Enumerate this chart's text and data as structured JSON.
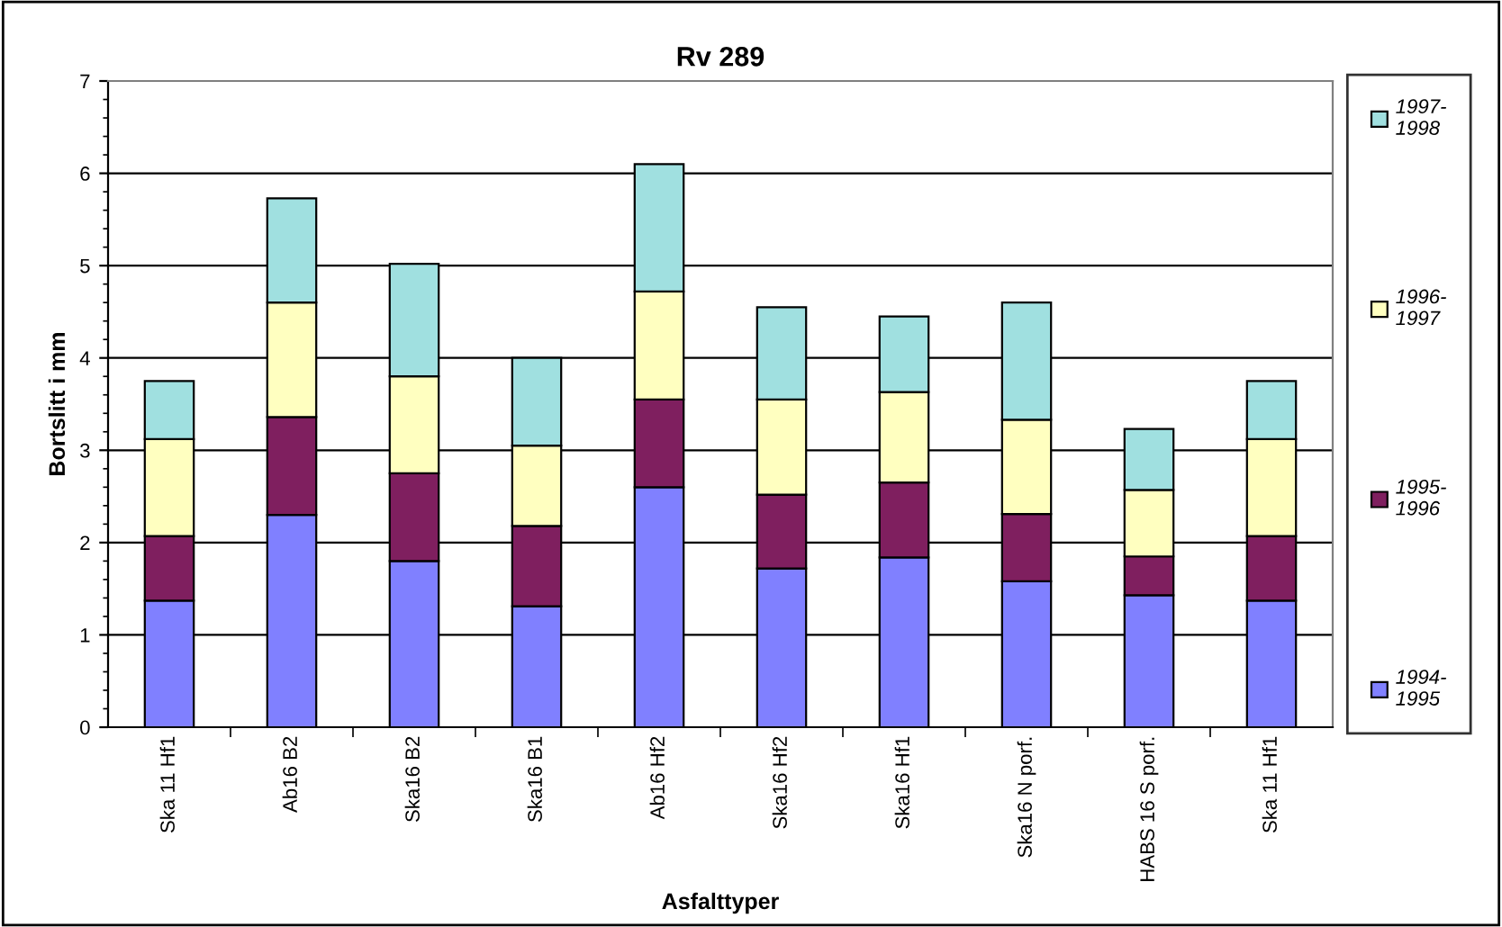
{
  "chart_data": {
    "type": "bar",
    "stacked": true,
    "title": "Rv 289",
    "xlabel": "Asfalttyper",
    "ylabel": "Bortslitt i mm",
    "categories": [
      "Ska 11 Hf1",
      "Ab16 B2",
      "Ska16 B2",
      "Ska16 B1",
      "Ab16 Hf2",
      "Ska16 Hf2",
      "Ska16 Hf1",
      "Ska16 N porf.",
      "HABS 16 S porf.",
      "Ska 11 Hf1"
    ],
    "series": [
      {
        "name": "1994-\n1995",
        "color": "#8080ff",
        "values": [
          1.37,
          2.3,
          1.8,
          1.31,
          2.6,
          1.72,
          1.84,
          1.58,
          1.43,
          1.37
        ]
      },
      {
        "name": "1995-\n1996",
        "color": "#7f1f5f",
        "values": [
          0.7,
          1.06,
          0.95,
          0.87,
          0.95,
          0.8,
          0.81,
          0.73,
          0.42,
          0.7
        ]
      },
      {
        "name": "1996-\n1997",
        "color": "#ffffc0",
        "values": [
          1.05,
          1.24,
          1.05,
          0.87,
          1.17,
          1.03,
          0.98,
          1.02,
          0.72,
          1.05
        ]
      },
      {
        "name": "1997-\n1998",
        "color": "#a0e0e0",
        "values": [
          0.63,
          1.13,
          1.22,
          0.95,
          1.38,
          1.0,
          0.82,
          1.27,
          0.66,
          0.63
        ]
      }
    ],
    "ylim": [
      0,
      7
    ],
    "yticks": [
      0,
      1,
      2,
      3,
      4,
      5,
      6,
      7
    ],
    "grid": "y",
    "legend": "right"
  }
}
